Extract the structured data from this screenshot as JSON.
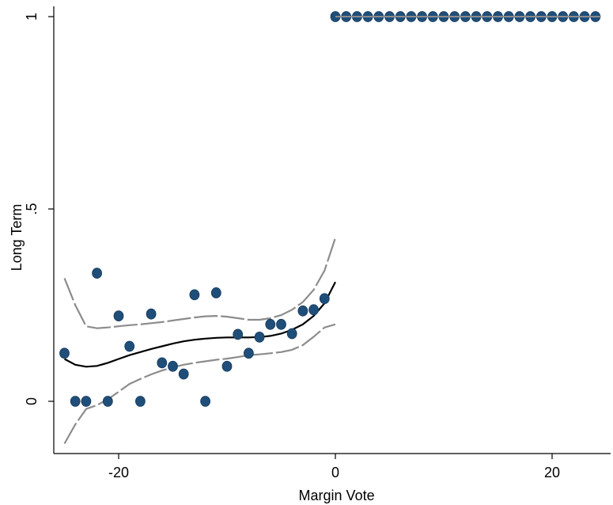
{
  "chart_data": {
    "type": "scatter",
    "xlabel": "Margin Vote",
    "ylabel": "Long Term",
    "xlim": [
      -26,
      25.5
    ],
    "ylim": [
      -0.14,
      1.04
    ],
    "x_ticks": [
      {
        "value": -20,
        "label": "-20"
      },
      {
        "value": 0,
        "label": "0"
      },
      {
        "value": 20,
        "label": "20"
      }
    ],
    "y_ticks": [
      {
        "value": 0,
        "label": "0"
      },
      {
        "value": 0.5,
        "label": ".5"
      },
      {
        "value": 1,
        "label": "1"
      }
    ],
    "grid": false,
    "colors": {
      "points": "#1f4e79",
      "point_outline": "#163b5e",
      "fit_line": "#000000",
      "ci_line": "#8c8c8c",
      "right_segment_line": "#8c8c8c"
    },
    "scatter_points": [
      {
        "x": -25,
        "y": 0.125
      },
      {
        "x": -24,
        "y": 0.0
      },
      {
        "x": -23,
        "y": 0.0
      },
      {
        "x": -22,
        "y": 0.333
      },
      {
        "x": -21,
        "y": 0.0
      },
      {
        "x": -20,
        "y": 0.222
      },
      {
        "x": -19,
        "y": 0.143
      },
      {
        "x": -18,
        "y": 0.0
      },
      {
        "x": -17,
        "y": 0.227
      },
      {
        "x": -16,
        "y": 0.1
      },
      {
        "x": -15,
        "y": 0.091
      },
      {
        "x": -14,
        "y": 0.071
      },
      {
        "x": -13,
        "y": 0.277
      },
      {
        "x": -12,
        "y": 0.0
      },
      {
        "x": -11,
        "y": 0.282
      },
      {
        "x": -10,
        "y": 0.091
      },
      {
        "x": -9,
        "y": 0.174
      },
      {
        "x": -8,
        "y": 0.125
      },
      {
        "x": -7,
        "y": 0.167
      },
      {
        "x": -6,
        "y": 0.2
      },
      {
        "x": -5,
        "y": 0.2
      },
      {
        "x": -4,
        "y": 0.176
      },
      {
        "x": -3,
        "y": 0.235
      },
      {
        "x": -2,
        "y": 0.238
      },
      {
        "x": -1,
        "y": 0.267
      },
      {
        "x": 0,
        "y": 1
      },
      {
        "x": 1,
        "y": 1
      },
      {
        "x": 2,
        "y": 1
      },
      {
        "x": 3,
        "y": 1
      },
      {
        "x": 4,
        "y": 1
      },
      {
        "x": 5,
        "y": 1
      },
      {
        "x": 6,
        "y": 1
      },
      {
        "x": 7,
        "y": 1
      },
      {
        "x": 8,
        "y": 1
      },
      {
        "x": 9,
        "y": 1
      },
      {
        "x": 10,
        "y": 1
      },
      {
        "x": 11,
        "y": 1
      },
      {
        "x": 12,
        "y": 1
      },
      {
        "x": 13,
        "y": 1
      },
      {
        "x": 14,
        "y": 1
      },
      {
        "x": 15,
        "y": 1
      },
      {
        "x": 16,
        "y": 1
      },
      {
        "x": 17,
        "y": 1
      },
      {
        "x": 18,
        "y": 1
      },
      {
        "x": 19,
        "y": 1
      },
      {
        "x": 20,
        "y": 1
      },
      {
        "x": 21,
        "y": 1
      },
      {
        "x": 22,
        "y": 1
      },
      {
        "x": 23,
        "y": 1
      },
      {
        "x": 24,
        "y": 1
      }
    ],
    "fit_left": [
      {
        "x": -25,
        "y": 0.11
      },
      {
        "x": -24,
        "y": 0.095
      },
      {
        "x": -23,
        "y": 0.09
      },
      {
        "x": -22,
        "y": 0.092
      },
      {
        "x": -21,
        "y": 0.1
      },
      {
        "x": -20,
        "y": 0.11
      },
      {
        "x": -19,
        "y": 0.12
      },
      {
        "x": -18,
        "y": 0.128
      },
      {
        "x": -17,
        "y": 0.136
      },
      {
        "x": -16,
        "y": 0.143
      },
      {
        "x": -15,
        "y": 0.15
      },
      {
        "x": -14,
        "y": 0.156
      },
      {
        "x": -13,
        "y": 0.16
      },
      {
        "x": -12,
        "y": 0.163
      },
      {
        "x": -11,
        "y": 0.165
      },
      {
        "x": -10,
        "y": 0.166
      },
      {
        "x": -9,
        "y": 0.166
      },
      {
        "x": -8,
        "y": 0.166
      },
      {
        "x": -7,
        "y": 0.167
      },
      {
        "x": -6,
        "y": 0.17
      },
      {
        "x": -5,
        "y": 0.176
      },
      {
        "x": -4,
        "y": 0.186
      },
      {
        "x": -3,
        "y": 0.2
      },
      {
        "x": -2,
        "y": 0.222
      },
      {
        "x": -1,
        "y": 0.255
      },
      {
        "x": 0,
        "y": 0.31
      }
    ],
    "ci_upper_left": [
      {
        "x": -25,
        "y": 0.32
      },
      {
        "x": -24,
        "y": 0.25
      },
      {
        "x": -23,
        "y": 0.195
      },
      {
        "x": -22,
        "y": 0.19
      },
      {
        "x": -21,
        "y": 0.192
      },
      {
        "x": -20,
        "y": 0.195
      },
      {
        "x": -19,
        "y": 0.198
      },
      {
        "x": -18,
        "y": 0.2
      },
      {
        "x": -17,
        "y": 0.203
      },
      {
        "x": -16,
        "y": 0.206
      },
      {
        "x": -15,
        "y": 0.21
      },
      {
        "x": -14,
        "y": 0.214
      },
      {
        "x": -13,
        "y": 0.218
      },
      {
        "x": -12,
        "y": 0.221
      },
      {
        "x": -11,
        "y": 0.222
      },
      {
        "x": -10,
        "y": 0.22
      },
      {
        "x": -9,
        "y": 0.216
      },
      {
        "x": -8,
        "y": 0.212
      },
      {
        "x": -7,
        "y": 0.212
      },
      {
        "x": -6,
        "y": 0.216
      },
      {
        "x": -5,
        "y": 0.224
      },
      {
        "x": -4,
        "y": 0.238
      },
      {
        "x": -3,
        "y": 0.258
      },
      {
        "x": -2,
        "y": 0.29
      },
      {
        "x": -1,
        "y": 0.34
      },
      {
        "x": 0,
        "y": 0.425
      }
    ],
    "ci_lower_left": [
      {
        "x": -25,
        "y": -0.11
      },
      {
        "x": -24,
        "y": -0.06
      },
      {
        "x": -23,
        "y": -0.02
      },
      {
        "x": -22,
        "y": -0.01
      },
      {
        "x": -21,
        "y": 0.005
      },
      {
        "x": -20,
        "y": 0.025
      },
      {
        "x": -19,
        "y": 0.045
      },
      {
        "x": -18,
        "y": 0.058
      },
      {
        "x": -17,
        "y": 0.07
      },
      {
        "x": -16,
        "y": 0.08
      },
      {
        "x": -15,
        "y": 0.088
      },
      {
        "x": -14,
        "y": 0.095
      },
      {
        "x": -13,
        "y": 0.1
      },
      {
        "x": -12,
        "y": 0.104
      },
      {
        "x": -11,
        "y": 0.108
      },
      {
        "x": -10,
        "y": 0.111
      },
      {
        "x": -9,
        "y": 0.115
      },
      {
        "x": -8,
        "y": 0.12
      },
      {
        "x": -7,
        "y": 0.122
      },
      {
        "x": -6,
        "y": 0.125
      },
      {
        "x": -5,
        "y": 0.128
      },
      {
        "x": -4,
        "y": 0.134
      },
      {
        "x": -3,
        "y": 0.146
      },
      {
        "x": -2,
        "y": 0.168
      },
      {
        "x": -1,
        "y": 0.192
      },
      {
        "x": 0,
        "y": 0.2
      }
    ],
    "fit_right": [
      {
        "x": 0,
        "y": 1
      },
      {
        "x": 24.5,
        "y": 1
      }
    ]
  }
}
